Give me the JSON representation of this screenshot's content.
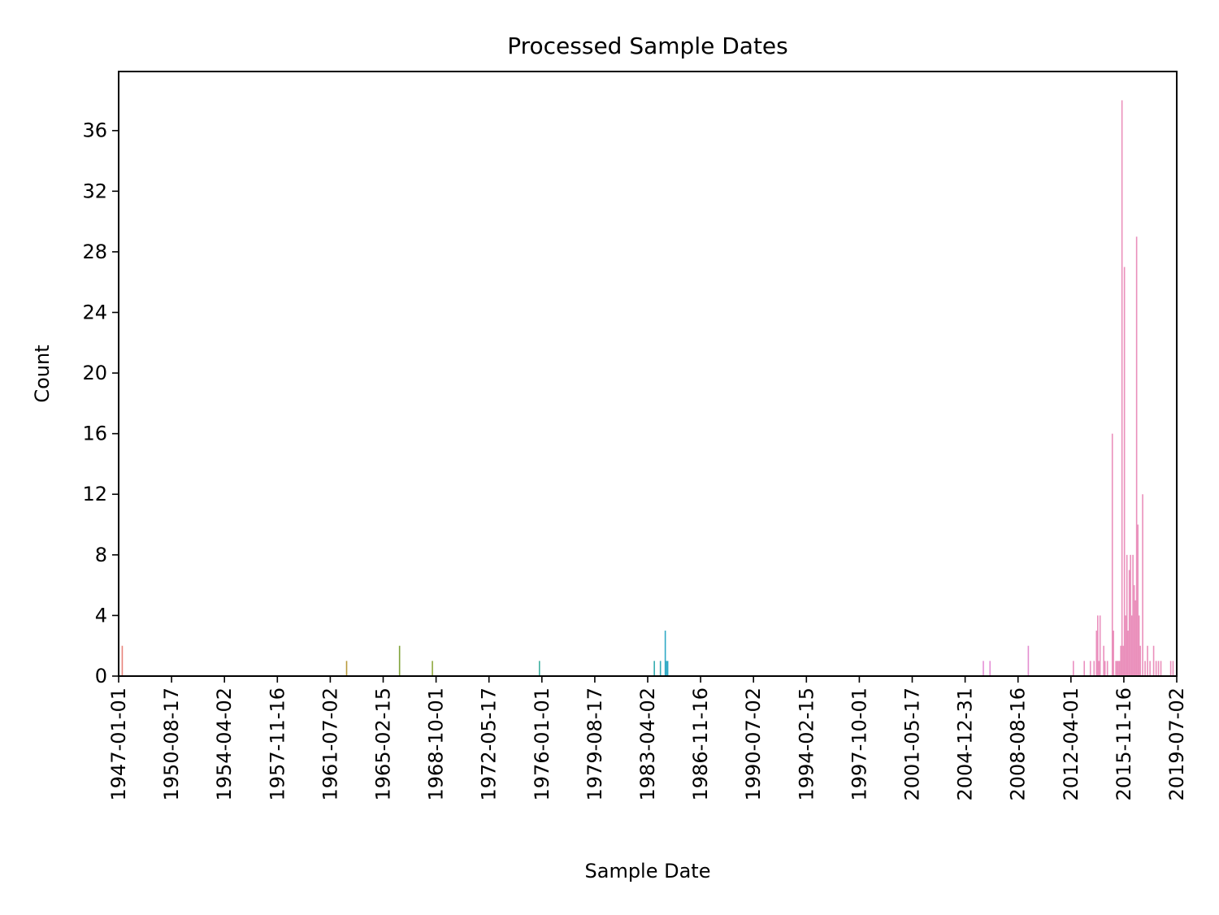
{
  "chart_data": {
    "type": "bar",
    "title": "Processed Sample Dates",
    "xlabel": "Sample Date",
    "ylabel": "Count",
    "x_axis_type": "date",
    "xlim": [
      "1947-01-01",
      "2019-07-02"
    ],
    "ylim": [
      0,
      39.9
    ],
    "yticks": [
      0,
      4,
      8,
      12,
      16,
      20,
      24,
      28,
      32,
      36
    ],
    "xticks": [
      "1947-01-01",
      "1950-08-17",
      "1954-04-02",
      "1957-11-16",
      "1961-07-02",
      "1965-02-15",
      "1968-10-01",
      "1972-05-17",
      "1976-01-01",
      "1979-08-17",
      "1983-04-02",
      "1986-11-16",
      "1990-07-02",
      "1994-02-15",
      "1997-10-01",
      "2001-05-17",
      "2004-12-31",
      "2008-08-16",
      "2012-04-01",
      "2015-11-16",
      "2019-07-02"
    ],
    "grid": false,
    "legend": "none",
    "bars": [
      {
        "date": "1947-04-01",
        "count": 2,
        "color": "#e8837a"
      },
      {
        "date": "1962-08-15",
        "count": 1,
        "color": "#b99b3d"
      },
      {
        "date": "1966-04-01",
        "count": 2,
        "color": "#7fa33a"
      },
      {
        "date": "1968-07-01",
        "count": 1,
        "color": "#8fa83e"
      },
      {
        "date": "1975-11-01",
        "count": 1,
        "color": "#3fb0a0"
      },
      {
        "date": "1983-09-15",
        "count": 1,
        "color": "#33acb0"
      },
      {
        "date": "1984-02-15",
        "count": 1,
        "color": "#33acb8"
      },
      {
        "date": "1984-06-15",
        "count": 3,
        "color": "#2fa9c4"
      },
      {
        "date": "1984-07-15",
        "count": 1,
        "color": "#2fa9c4"
      },
      {
        "date": "1984-08-15",
        "count": 1,
        "color": "#2fa9c4"
      },
      {
        "date": "2006-04-01",
        "count": 1,
        "color": "#e58fd6"
      },
      {
        "date": "2006-09-15",
        "count": 1,
        "color": "#e58fd6"
      },
      {
        "date": "2009-05-01",
        "count": 2,
        "color": "#e38ed0"
      },
      {
        "date": "2012-06-01",
        "count": 1,
        "color": "#ea8fc0"
      },
      {
        "date": "2013-03-01",
        "count": 1,
        "color": "#ea8fc0"
      },
      {
        "date": "2013-08-01",
        "count": 1,
        "color": "#ea8fc0"
      },
      {
        "date": "2013-11-01",
        "count": 1,
        "color": "#ea8fc0"
      },
      {
        "date": "2014-01-01",
        "count": 3,
        "color": "#ea8fbd"
      },
      {
        "date": "2014-02-01",
        "count": 4,
        "color": "#ea8fbd"
      },
      {
        "date": "2014-03-01",
        "count": 1,
        "color": "#ea8fbd"
      },
      {
        "date": "2014-04-01",
        "count": 4,
        "color": "#ea8fbd"
      },
      {
        "date": "2014-07-01",
        "count": 2,
        "color": "#ea8fbd"
      },
      {
        "date": "2014-08-01",
        "count": 1,
        "color": "#ea8fbd"
      },
      {
        "date": "2014-10-01",
        "count": 1,
        "color": "#ea8fbd"
      },
      {
        "date": "2015-02-01",
        "count": 16,
        "color": "#ea8fbb"
      },
      {
        "date": "2015-03-01",
        "count": 3,
        "color": "#ea8fbb"
      },
      {
        "date": "2015-05-01",
        "count": 1,
        "color": "#ea8fbb"
      },
      {
        "date": "2015-06-01",
        "count": 1,
        "color": "#ea8fbb"
      },
      {
        "date": "2015-07-01",
        "count": 1,
        "color": "#ea8fbb"
      },
      {
        "date": "2015-08-01",
        "count": 1,
        "color": "#ea8fbb"
      },
      {
        "date": "2015-09-01",
        "count": 2,
        "color": "#ea8fbb"
      },
      {
        "date": "2015-10-01",
        "count": 38,
        "color": "#ea8fbb"
      },
      {
        "date": "2015-11-01",
        "count": 2,
        "color": "#ea8fbb"
      },
      {
        "date": "2015-12-01",
        "count": 27,
        "color": "#ea8fbb"
      },
      {
        "date": "2016-01-01",
        "count": 4,
        "color": "#ea8fbb"
      },
      {
        "date": "2016-02-01",
        "count": 8,
        "color": "#ea8fbb"
      },
      {
        "date": "2016-03-01",
        "count": 3,
        "color": "#ea8fbb"
      },
      {
        "date": "2016-04-01",
        "count": 7,
        "color": "#ea8fbb"
      },
      {
        "date": "2016-05-01",
        "count": 8,
        "color": "#ea8fbb"
      },
      {
        "date": "2016-06-01",
        "count": 4,
        "color": "#ea8fbb"
      },
      {
        "date": "2016-07-01",
        "count": 8,
        "color": "#ea8fbb"
      },
      {
        "date": "2016-08-01",
        "count": 6,
        "color": "#ea8fbb"
      },
      {
        "date": "2016-09-01",
        "count": 5,
        "color": "#ea8fbb"
      },
      {
        "date": "2016-10-01",
        "count": 29,
        "color": "#ea8fbb"
      },
      {
        "date": "2016-11-01",
        "count": 10,
        "color": "#ea8fbb"
      },
      {
        "date": "2016-12-01",
        "count": 4,
        "color": "#ea8fbb"
      },
      {
        "date": "2017-01-01",
        "count": 2,
        "color": "#ea8fbb"
      },
      {
        "date": "2017-03-01",
        "count": 12,
        "color": "#ea8fbb"
      },
      {
        "date": "2017-05-01",
        "count": 1,
        "color": "#ea8fbb"
      },
      {
        "date": "2017-07-01",
        "count": 2,
        "color": "#ea8fbb"
      },
      {
        "date": "2017-09-01",
        "count": 1,
        "color": "#ea8fbb"
      },
      {
        "date": "2017-12-01",
        "count": 2,
        "color": "#ea8fbb"
      },
      {
        "date": "2018-02-01",
        "count": 1,
        "color": "#ea8fbb"
      },
      {
        "date": "2018-04-01",
        "count": 1,
        "color": "#ea8fbb"
      },
      {
        "date": "2018-06-01",
        "count": 1,
        "color": "#ea8fbb"
      },
      {
        "date": "2019-02-01",
        "count": 1,
        "color": "#ea8fbb"
      },
      {
        "date": "2019-04-01",
        "count": 1,
        "color": "#ea8fbb"
      }
    ]
  }
}
